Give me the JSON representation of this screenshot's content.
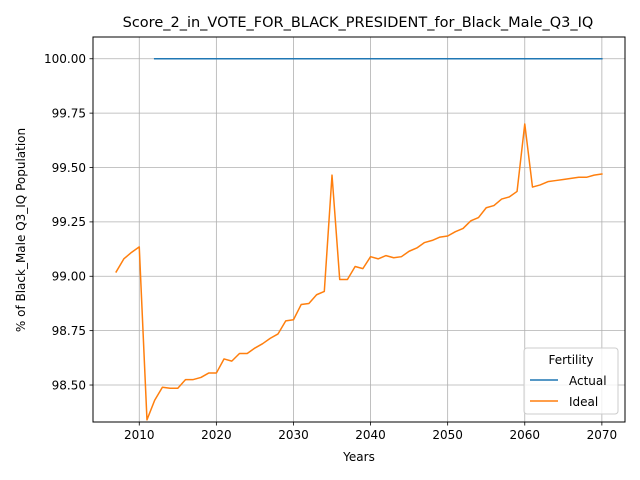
{
  "chart_data": {
    "type": "line",
    "title": "Score_2_in_VOTE_FOR_BLACK_PRESIDENT_for_Black_Male_Q3_IQ",
    "xlabel": "Years",
    "ylabel": "% of Black_Male Q3_IQ Population",
    "xlim": [
      2004,
      2073
    ],
    "ylim": [
      98.33,
      100.1
    ],
    "xticks": [
      2010,
      2020,
      2030,
      2040,
      2050,
      2060,
      2070
    ],
    "xtick_labels": [
      "2010",
      "2020",
      "2030",
      "2040",
      "2050",
      "2060",
      "2070"
    ],
    "yticks": [
      98.5,
      98.75,
      99.0,
      99.25,
      99.5,
      99.75,
      100.0
    ],
    "ytick_labels": [
      "98.50",
      "98.75",
      "99.00",
      "99.25",
      "99.50",
      "99.75",
      "100.00"
    ],
    "grid": true,
    "legend": {
      "title": "Fertility",
      "position": "lower-right"
    },
    "series": [
      {
        "name": "Actual",
        "color": "#1f77b4",
        "x": [
          2012,
          2070
        ],
        "y": [
          100.0,
          100.0
        ]
      },
      {
        "name": "Ideal",
        "color": "#ff7f0e",
        "x": [
          2007,
          2008,
          2009,
          2010,
          2011,
          2012,
          2013,
          2014,
          2015,
          2016,
          2017,
          2018,
          2019,
          2020,
          2021,
          2022,
          2023,
          2024,
          2025,
          2026,
          2027,
          2028,
          2029,
          2030,
          2031,
          2032,
          2033,
          2034,
          2035,
          2036,
          2037,
          2038,
          2039,
          2040,
          2041,
          2042,
          2043,
          2044,
          2045,
          2046,
          2047,
          2048,
          2049,
          2050,
          2051,
          2052,
          2053,
          2054,
          2055,
          2056,
          2057,
          2058,
          2059,
          2060,
          2061,
          2062,
          2063,
          2064,
          2065,
          2066,
          2067,
          2068,
          2069,
          2070
        ],
        "y": [
          99.02,
          99.08,
          99.11,
          99.135,
          98.34,
          98.43,
          98.49,
          98.485,
          98.485,
          98.525,
          98.525,
          98.535,
          98.555,
          98.555,
          98.62,
          98.61,
          98.645,
          98.645,
          98.67,
          98.69,
          98.715,
          98.735,
          98.795,
          98.8,
          98.87,
          98.875,
          98.915,
          98.93,
          99.465,
          98.985,
          98.985,
          99.045,
          99.035,
          99.09,
          99.08,
          99.095,
          99.085,
          99.09,
          99.115,
          99.13,
          99.155,
          99.165,
          99.18,
          99.185,
          99.205,
          99.22,
          99.255,
          99.27,
          99.315,
          99.325,
          99.355,
          99.365,
          99.39,
          99.7,
          99.41,
          99.42,
          99.435,
          99.44,
          99.445,
          99.45,
          99.455,
          99.455,
          99.465,
          99.47
        ]
      }
    ]
  }
}
